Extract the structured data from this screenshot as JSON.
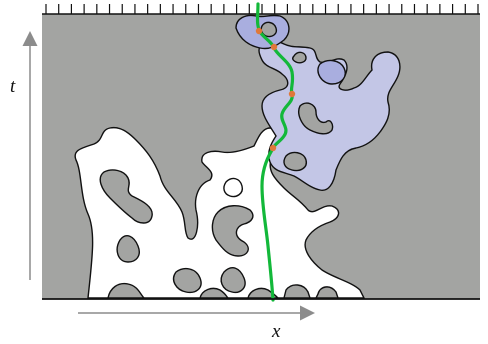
{
  "figure": {
    "axis_labels": {
      "horizontal": "x",
      "vertical": "t"
    },
    "colors": {
      "background": "#a3a4a2",
      "empty_region": "#ffffff",
      "cluster_region": "#c3c6e6",
      "cluster_core": "#a9aedf",
      "outline": "#111111",
      "path": "#13b83a",
      "junction_dot": "#e0783a",
      "arrow": "#8c8c8c"
    },
    "top_ruler_tick_count": 35
  }
}
